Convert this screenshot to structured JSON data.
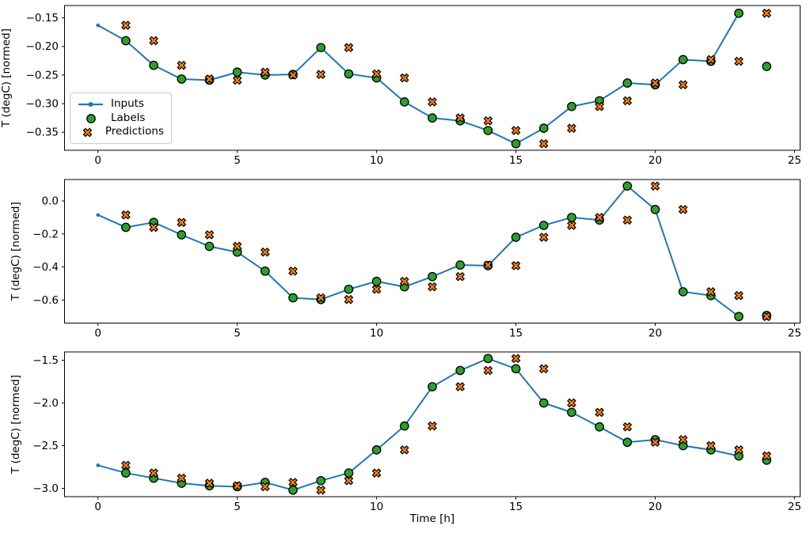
{
  "figure": {
    "xlabel": "Time [h]",
    "ylabel": "T (degC) [normed]",
    "background": "#ffffff",
    "colors": {
      "inputs_line": "#1f77b4",
      "labels_marker": "#2ca02c",
      "predictions_marker": "#ff7f0e",
      "marker_edge": "#000000",
      "axis": "#000000",
      "legend_border": "#cccccc"
    }
  },
  "legend": {
    "items": [
      {
        "label": "Inputs",
        "marker": "line-with-dot",
        "color": "#1f77b4"
      },
      {
        "label": "Labels",
        "marker": "circle",
        "color": "#2ca02c"
      },
      {
        "label": "Predictions",
        "marker": "thick-x",
        "color": "#ff7f0e"
      }
    ]
  },
  "chart_data": [
    {
      "type": "line",
      "ylabel": "T (degC) [normed]",
      "xlabel": "",
      "xlim": [
        -1.2,
        25.2
      ],
      "ylim": [
        -0.3815,
        -0.1285
      ],
      "xticks": [
        0,
        5,
        10,
        15,
        20,
        25
      ],
      "xtick_labels": [
        "0",
        "5",
        "10",
        "15",
        "20",
        "25"
      ],
      "yticks": [
        -0.15,
        -0.2,
        -0.25,
        -0.3,
        -0.35
      ],
      "ytick_labels": [
        "−0.15",
        "−0.20",
        "−0.25",
        "−0.30",
        "−0.35"
      ],
      "series": [
        {
          "name": "Inputs",
          "style": "line-with-dot",
          "x": [
            0,
            1,
            2,
            3,
            4,
            5,
            6,
            7,
            8,
            9,
            10,
            11,
            12,
            13,
            14,
            15,
            16,
            17,
            18,
            19,
            20,
            21,
            22,
            23
          ],
          "y": [
            -0.163,
            -0.19,
            -0.233,
            -0.257,
            -0.259,
            -0.245,
            -0.25,
            -0.249,
            -0.202,
            -0.248,
            -0.255,
            -0.297,
            -0.325,
            -0.33,
            -0.347,
            -0.37,
            -0.343,
            -0.305,
            -0.295,
            -0.264,
            -0.267,
            -0.223,
            -0.226,
            -0.142
          ]
        },
        {
          "name": "Labels",
          "style": "circle",
          "x": [
            1,
            2,
            3,
            4,
            5,
            6,
            7,
            8,
            9,
            10,
            11,
            12,
            13,
            14,
            15,
            16,
            17,
            18,
            19,
            20,
            21,
            22,
            23,
            24
          ],
          "y": [
            -0.19,
            -0.233,
            -0.257,
            -0.259,
            -0.245,
            -0.25,
            -0.249,
            -0.202,
            -0.248,
            -0.255,
            -0.297,
            -0.325,
            -0.33,
            -0.347,
            -0.37,
            -0.343,
            -0.305,
            -0.295,
            -0.264,
            -0.267,
            -0.223,
            -0.226,
            -0.142,
            -0.235
          ]
        },
        {
          "name": "Predictions",
          "style": "thick-x",
          "x": [
            1,
            2,
            3,
            4,
            5,
            6,
            7,
            8,
            9,
            10,
            11,
            12,
            13,
            14,
            15,
            16,
            17,
            18,
            19,
            20,
            21,
            22,
            23,
            24
          ],
          "y": [
            -0.163,
            -0.19,
            -0.233,
            -0.257,
            -0.259,
            -0.245,
            -0.25,
            -0.249,
            -0.202,
            -0.248,
            -0.255,
            -0.297,
            -0.325,
            -0.33,
            -0.347,
            -0.37,
            -0.343,
            -0.305,
            -0.295,
            -0.264,
            -0.267,
            -0.223,
            -0.226,
            -0.142
          ]
        }
      ]
    },
    {
      "type": "line",
      "ylabel": "T (degC) [normed]",
      "xlabel": "",
      "xlim": [
        -1.2,
        25.2
      ],
      "ylim": [
        -0.7395,
        0.1295
      ],
      "xticks": [
        0,
        5,
        10,
        15,
        20,
        25
      ],
      "xtick_labels": [
        "0",
        "5",
        "10",
        "15",
        "20",
        "25"
      ],
      "yticks": [
        0.0,
        -0.2,
        -0.4,
        -0.6
      ],
      "ytick_labels": [
        "0.0",
        "−0.2",
        "−0.4",
        "−0.6"
      ],
      "series": [
        {
          "name": "Inputs",
          "style": "line-with-dot",
          "x": [
            0,
            1,
            2,
            3,
            4,
            5,
            6,
            7,
            8,
            9,
            10,
            11,
            12,
            13,
            14,
            15,
            16,
            17,
            18,
            19,
            20,
            21,
            22,
            23
          ],
          "y": [
            -0.085,
            -0.16,
            -0.13,
            -0.205,
            -0.275,
            -0.31,
            -0.425,
            -0.587,
            -0.597,
            -0.535,
            -0.487,
            -0.52,
            -0.458,
            -0.388,
            -0.392,
            -0.22,
            -0.148,
            -0.1,
            -0.116,
            0.09,
            -0.052,
            -0.55,
            -0.573,
            -0.7
          ]
        },
        {
          "name": "Labels",
          "style": "circle",
          "x": [
            1,
            2,
            3,
            4,
            5,
            6,
            7,
            8,
            9,
            10,
            11,
            12,
            13,
            14,
            15,
            16,
            17,
            18,
            19,
            20,
            21,
            22,
            23,
            24
          ],
          "y": [
            -0.16,
            -0.13,
            -0.205,
            -0.275,
            -0.31,
            -0.425,
            -0.587,
            -0.597,
            -0.535,
            -0.487,
            -0.52,
            -0.458,
            -0.388,
            -0.392,
            -0.22,
            -0.148,
            -0.1,
            -0.116,
            0.09,
            -0.052,
            -0.55,
            -0.573,
            -0.7,
            -0.693
          ]
        },
        {
          "name": "Predictions",
          "style": "thick-x",
          "x": [
            1,
            2,
            3,
            4,
            5,
            6,
            7,
            8,
            9,
            10,
            11,
            12,
            13,
            14,
            15,
            16,
            17,
            18,
            19,
            20,
            21,
            22,
            23,
            24
          ],
          "y": [
            -0.085,
            -0.16,
            -0.13,
            -0.205,
            -0.275,
            -0.31,
            -0.425,
            -0.587,
            -0.597,
            -0.535,
            -0.487,
            -0.52,
            -0.458,
            -0.388,
            -0.392,
            -0.22,
            -0.148,
            -0.1,
            -0.116,
            0.09,
            -0.052,
            -0.55,
            -0.573,
            -0.7
          ]
        }
      ]
    },
    {
      "type": "line",
      "ylabel": "T (degC) [normed]",
      "xlabel": "Time [h]",
      "xlim": [
        -1.2,
        25.2
      ],
      "ylim": [
        -3.097,
        -1.403
      ],
      "xticks": [
        0,
        5,
        10,
        15,
        20,
        25
      ],
      "xtick_labels": [
        "0",
        "5",
        "10",
        "15",
        "20",
        "25"
      ],
      "yticks": [
        -1.5,
        -2.0,
        -2.5,
        -3.0
      ],
      "ytick_labels": [
        "−1.5",
        "−2.0",
        "−2.5",
        "−3.0"
      ],
      "series": [
        {
          "name": "Inputs",
          "style": "line-with-dot",
          "x": [
            0,
            1,
            2,
            3,
            4,
            5,
            6,
            7,
            8,
            9,
            10,
            11,
            12,
            13,
            14,
            15,
            16,
            17,
            18,
            19,
            20,
            21,
            22,
            23
          ],
          "y": [
            -2.73,
            -2.82,
            -2.88,
            -2.94,
            -2.97,
            -2.98,
            -2.93,
            -3.02,
            -2.91,
            -2.82,
            -2.55,
            -2.27,
            -1.81,
            -1.62,
            -1.48,
            -1.6,
            -2.0,
            -2.11,
            -2.28,
            -2.46,
            -2.43,
            -2.5,
            -2.55,
            -2.62
          ]
        },
        {
          "name": "Labels",
          "style": "circle",
          "x": [
            1,
            2,
            3,
            4,
            5,
            6,
            7,
            8,
            9,
            10,
            11,
            12,
            13,
            14,
            15,
            16,
            17,
            18,
            19,
            20,
            21,
            22,
            23,
            24
          ],
          "y": [
            -2.82,
            -2.88,
            -2.94,
            -2.97,
            -2.98,
            -2.93,
            -3.02,
            -2.91,
            -2.82,
            -2.55,
            -2.27,
            -1.81,
            -1.62,
            -1.48,
            -1.6,
            -2.0,
            -2.11,
            -2.28,
            -2.46,
            -2.43,
            -2.5,
            -2.55,
            -2.62,
            -2.67
          ]
        },
        {
          "name": "Predictions",
          "style": "thick-x",
          "x": [
            1,
            2,
            3,
            4,
            5,
            6,
            7,
            8,
            9,
            10,
            11,
            12,
            13,
            14,
            15,
            16,
            17,
            18,
            19,
            20,
            21,
            22,
            23,
            24
          ],
          "y": [
            -2.73,
            -2.82,
            -2.88,
            -2.94,
            -2.97,
            -2.98,
            -2.93,
            -3.02,
            -2.91,
            -2.82,
            -2.55,
            -2.27,
            -1.81,
            -1.62,
            -1.48,
            -1.6,
            -2.0,
            -2.11,
            -2.28,
            -2.46,
            -2.43,
            -2.5,
            -2.55,
            -2.62
          ]
        }
      ]
    }
  ]
}
